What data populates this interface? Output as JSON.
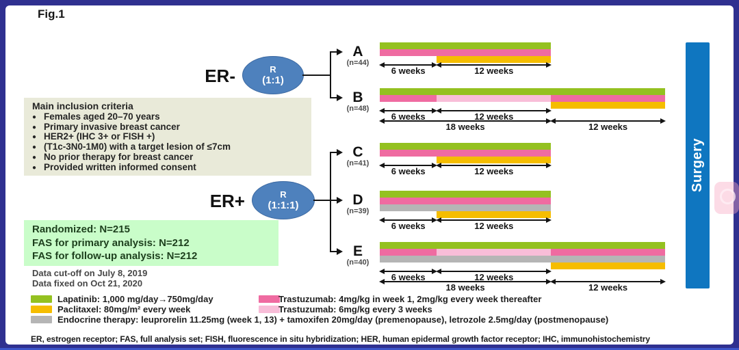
{
  "figure_label": "Fig.1",
  "colors": {
    "green": "#94c120",
    "yellow": "#f5bd00",
    "pink": "#ef6ba1",
    "lightpink": "#f8bdd8",
    "gray": "#b5b5b5",
    "ellipse_blue": "#4e81bd",
    "surgery_blue": "#0f76c0",
    "border_navy": "#2f3090",
    "inclusion_bg": "#e9ead9",
    "randomized_bg": "#c9fdc9"
  },
  "inclusion_box": {
    "title": "Main inclusion criteria",
    "items": [
      "Females aged 20–70 years",
      "Primary invasive breast cancer",
      "HER2+ (IHC 3+ or FISH +)",
      "(T1c-3N0-1M0) with a target lesion of ≤7cm",
      "No prior therapy for breast cancer",
      "Provided written informed consent"
    ]
  },
  "randomization_box": {
    "lines": [
      "Randomized: N=215",
      "FAS for primary analysis: N=212",
      "FAS for follow-up analysis: N=212"
    ]
  },
  "data_notes": [
    "Data cut-off on July 8, 2019",
    "Data fixed on Oct 21, 2020"
  ],
  "groups": [
    {
      "label": "ER-",
      "r_label": "R",
      "ratio_label": "(1:1)",
      "arm_ids": [
        "A",
        "B"
      ]
    },
    {
      "label": "ER+",
      "r_label": "R",
      "ratio_label": "(1:1:1)",
      "arm_ids": [
        "C",
        "D",
        "E"
      ]
    }
  ],
  "arms": [
    {
      "id": "A",
      "n_label": "(n=44)",
      "rows": [
        {
          "drug": "lapatinib",
          "segments": [
            {
              "color": "green",
              "from": 0,
              "to": 18
            }
          ]
        },
        {
          "drug": "trastuzumab-weekly",
          "segments": [
            {
              "color": "pink",
              "from": 0,
              "to": 18
            }
          ]
        },
        {
          "drug": "paclitaxel",
          "segments": [
            {
              "color": "yellow",
              "from": 6,
              "to": 18
            }
          ]
        }
      ],
      "spans": [
        [
          {
            "label": "6 weeks",
            "from": 0,
            "to": 6
          },
          {
            "label": "12 weeks",
            "from": 6,
            "to": 18
          }
        ]
      ]
    },
    {
      "id": "B",
      "n_label": "(n=48)",
      "rows": [
        {
          "drug": "lapatinib",
          "segments": [
            {
              "color": "green",
              "from": 0,
              "to": 30
            }
          ]
        },
        {
          "drug": "trastuzumab",
          "segments": [
            {
              "color": "pink",
              "from": 0,
              "to": 6
            },
            {
              "color": "lightpink",
              "from": 6,
              "to": 18
            },
            {
              "color": "pink",
              "from": 18,
              "to": 30
            }
          ]
        },
        {
          "drug": "paclitaxel",
          "segments": [
            {
              "color": "yellow",
              "from": 18,
              "to": 30
            }
          ]
        }
      ],
      "spans": [
        [
          {
            "label": "6 weeks",
            "from": 0,
            "to": 6
          },
          {
            "label": "12 weeks",
            "from": 6,
            "to": 18
          }
        ],
        [
          {
            "label": "18 weeks",
            "from": 0,
            "to": 18
          },
          {
            "label": "12 weeks",
            "from": 18,
            "to": 30
          }
        ]
      ]
    },
    {
      "id": "C",
      "n_label": "(n=41)",
      "rows": [
        {
          "drug": "lapatinib",
          "segments": [
            {
              "color": "green",
              "from": 0,
              "to": 18
            }
          ]
        },
        {
          "drug": "trastuzumab-weekly",
          "segments": [
            {
              "color": "pink",
              "from": 0,
              "to": 18
            }
          ]
        },
        {
          "drug": "paclitaxel",
          "segments": [
            {
              "color": "yellow",
              "from": 6,
              "to": 18
            }
          ]
        }
      ],
      "spans": [
        [
          {
            "label": "6 weeks",
            "from": 0,
            "to": 6
          },
          {
            "label": "12 weeks",
            "from": 6,
            "to": 18
          }
        ]
      ]
    },
    {
      "id": "D",
      "n_label": "(n=39)",
      "rows": [
        {
          "drug": "lapatinib",
          "segments": [
            {
              "color": "green",
              "from": 0,
              "to": 18
            }
          ]
        },
        {
          "drug": "trastuzumab-weekly",
          "segments": [
            {
              "color": "pink",
              "from": 0,
              "to": 18
            }
          ]
        },
        {
          "drug": "endocrine-therapy",
          "segments": [
            {
              "color": "gray",
              "from": 0,
              "to": 18
            }
          ]
        },
        {
          "drug": "paclitaxel",
          "segments": [
            {
              "color": "yellow",
              "from": 6,
              "to": 18
            }
          ]
        }
      ],
      "spans": [
        [
          {
            "label": "6 weeks",
            "from": 0,
            "to": 6
          },
          {
            "label": "12 weeks",
            "from": 6,
            "to": 18
          }
        ]
      ]
    },
    {
      "id": "E",
      "n_label": "(n=40)",
      "rows": [
        {
          "drug": "lapatinib",
          "segments": [
            {
              "color": "green",
              "from": 0,
              "to": 30
            }
          ]
        },
        {
          "drug": "trastuzumab",
          "segments": [
            {
              "color": "pink",
              "from": 0,
              "to": 6
            },
            {
              "color": "lightpink",
              "from": 6,
              "to": 18
            },
            {
              "color": "pink",
              "from": 18,
              "to": 30
            }
          ]
        },
        {
          "drug": "endocrine-therapy",
          "segments": [
            {
              "color": "gray",
              "from": 0,
              "to": 30
            }
          ]
        },
        {
          "drug": "paclitaxel",
          "segments": [
            {
              "color": "yellow",
              "from": 18,
              "to": 30
            }
          ]
        }
      ],
      "spans": [
        [
          {
            "label": "6 weeks",
            "from": 0,
            "to": 6
          },
          {
            "label": "12 weeks",
            "from": 6,
            "to": 18
          }
        ],
        [
          {
            "label": "18 weeks",
            "from": 0,
            "to": 18
          },
          {
            "label": "12 weeks",
            "from": 18,
            "to": 30
          }
        ]
      ]
    }
  ],
  "surgery_label": "Surgery",
  "legend": [
    {
      "swatch": "green",
      "col": 1,
      "row": 1,
      "label": "Lapatinib: 1,000 mg/day→750mg/day"
    },
    {
      "swatch": "yellow",
      "col": 1,
      "row": 2,
      "label": "Paclitaxel: 80mg/m² every week"
    },
    {
      "swatch": "gray",
      "col": 1,
      "row": 3,
      "label": "Endocrine therapy: leuprorelin 11.25mg (week 1, 13) + tamoxifen 20mg/day (premenopause), letrozole 2.5mg/day (postmenopause)"
    },
    {
      "swatch": "pink",
      "col": 2,
      "row": 1,
      "label": "Trastuzumab: 4mg/kg in week 1, 2mg/kg every week thereafter"
    },
    {
      "swatch": "lightpink",
      "col": 2,
      "row": 2,
      "label": "Trastuzumab: 6mg/kg every 3 weeks"
    }
  ],
  "footnote": "ER, estrogen receptor; FAS, full analysis set; FISH, fluorescence in situ hybridization; HER, human epidermal growth factor receptor; IHC, immunohistochemistry"
}
